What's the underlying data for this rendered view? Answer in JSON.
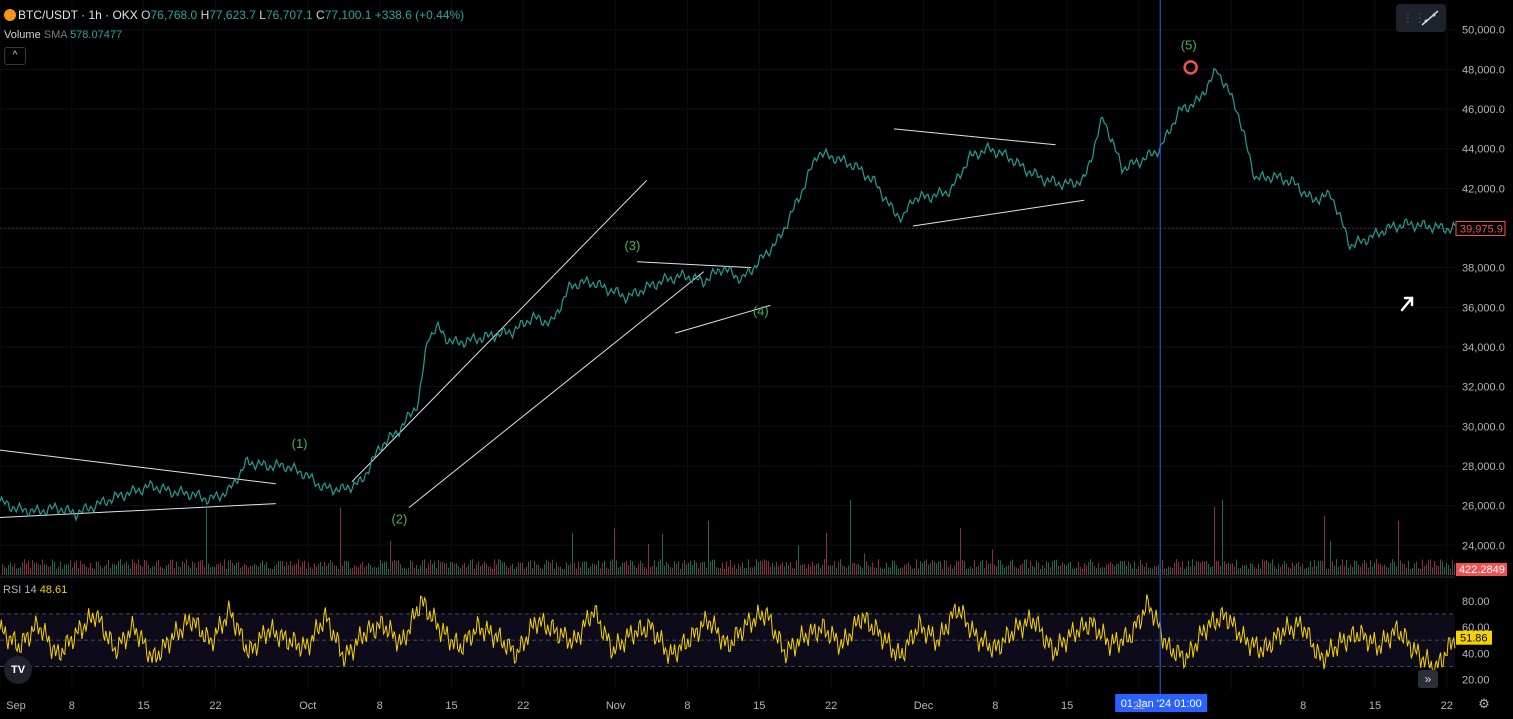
{
  "header": {
    "symbol": "BTC/USDT · 1h · OKX",
    "open_label": "O",
    "open": "76,768.0",
    "high_label": "H",
    "high": "77,623.7",
    "low_label": "L",
    "low": "76,707.1",
    "close_label": "C",
    "close": "77,100.1",
    "change": "+338.6 (+0.44%)"
  },
  "volume": {
    "label": "Volume",
    "ma_label": "SMA",
    "ma_value": "578.07477"
  },
  "collapse_glyph": "^",
  "rsi": {
    "label": "RSI",
    "length": "14",
    "value": "48.61"
  },
  "logo_text": "TV",
  "scroll_glyph": "»",
  "colors": {
    "up": "#26a69a",
    "down": "#ef5350",
    "rsi": "#f5d300",
    "wave_label": "#4caf50",
    "crosshair": "#2962ff",
    "price_tag": "#ef5350",
    "background": "#000000"
  },
  "icons": [
    "bitcoin-icon",
    "trendline-tool-icon",
    "cursor-arrow-icon",
    "settings-gear-icon",
    "tradingview-logo-icon",
    "scroll-right-icon"
  ],
  "chart_data": [
    {
      "type": "line",
      "title": "",
      "x_ticks": [
        "Sep",
        "8",
        "15",
        "22",
        "Oct",
        "8",
        "15",
        "22",
        "Nov",
        "8",
        "15",
        "22",
        "Dec",
        "8",
        "15",
        "22",
        "01 Jan '24",
        "8",
        "15",
        "22"
      ],
      "y_ticks": [
        "50,000.0",
        "48,000.0",
        "46,000.0",
        "44,000.0",
        "42,000.0",
        "40,000.0",
        "38,000.0",
        "36,000.0",
        "34,000.0",
        "32,000.0",
        "30,000.0",
        "28,000.0",
        "26,000.0",
        "24,000.0"
      ],
      "ylim": [
        22500,
        51500
      ],
      "xlim": [
        0,
        153
      ],
      "last_price_label": "39,975.9",
      "last_volume_label": "422.2849",
      "crosshair_time_label": "01 Jan '24  01:00",
      "crosshair_x": 122,
      "series": [
        {
          "x": [
            0,
            2,
            4,
            6,
            8,
            10,
            12,
            14,
            16,
            18,
            20,
            22,
            24,
            26,
            28,
            30,
            32,
            34,
            36,
            38,
            40,
            42,
            44,
            45,
            46,
            47,
            48,
            50,
            52,
            54,
            56,
            58,
            60,
            62,
            64,
            66,
            68,
            70,
            71,
            72,
            74,
            76,
            78,
            80,
            82,
            84,
            86,
            88,
            90,
            92,
            94,
            95,
            96,
            98,
            100,
            102,
            104,
            106,
            108,
            110,
            112,
            114,
            116,
            118,
            120,
            122,
            124,
            126,
            128,
            130,
            132,
            134,
            136,
            138,
            140,
            142,
            144,
            146,
            148,
            150,
            152,
            153
          ],
          "values": [
            26200,
            25800,
            25700,
            25900,
            25600,
            26000,
            26400,
            26700,
            27000,
            26700,
            26600,
            26300,
            26700,
            28200,
            28000,
            28000,
            27600,
            26900,
            26800,
            27200,
            29000,
            29800,
            31200,
            34500,
            35000,
            34400,
            34200,
            34400,
            34600,
            34800,
            35500,
            35200,
            37100,
            37300,
            36900,
            36500,
            37000,
            37400,
            37500,
            37600,
            37300,
            38000,
            37400,
            38400,
            39500,
            41500,
            43800,
            43500,
            43100,
            42300,
            40800,
            40500,
            41500,
            41600,
            41900,
            43600,
            44000,
            43600,
            42900,
            42400,
            42200,
            42400,
            45600,
            43000,
            43400,
            44000,
            45900,
            46400,
            48000,
            46100,
            42500,
            42600,
            42300,
            41400,
            41700,
            39100,
            39500,
            40000,
            40200,
            40100,
            39976,
            39976
          ]
        }
      ]
    },
    {
      "type": "line",
      "title": "RSI 14",
      "y_ticks": [
        "80.00",
        "60.00",
        "40.00",
        "20.00"
      ],
      "ylim": [
        12,
        92
      ],
      "bands": [
        70,
        50,
        30
      ],
      "last_value_label": "51.86",
      "series": [
        {
          "values": [
            58,
            45,
            62,
            38,
            55,
            70,
            42,
            60,
            35,
            52,
            66,
            48,
            72,
            40,
            58,
            50,
            44,
            68,
            36,
            55,
            62,
            47,
            80,
            58,
            44,
            60,
            52,
            39,
            65,
            57,
            48,
            73,
            42,
            55,
            60,
            38,
            50,
            66,
            45,
            62,
            71,
            40,
            53,
            59,
            46,
            68,
            54,
            37,
            61,
            49,
            75,
            52,
            43,
            58,
            66,
            41,
            55,
            63,
            47,
            52,
            78,
            44,
            36,
            60,
            69,
            50,
            42,
            57,
            62,
            35,
            48,
            55,
            45,
            58,
            40,
            28,
            52
          ]
        }
      ]
    }
  ],
  "annotations": {
    "waves": [
      "(1)",
      "(2)",
      "(3)",
      "(4)",
      "(5)"
    ]
  }
}
